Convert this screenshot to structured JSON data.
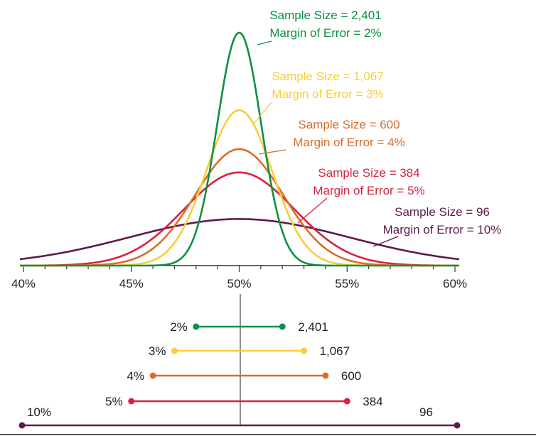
{
  "chart_data": {
    "type": "line",
    "x_ticks": [
      "40%",
      "45%",
      "50%",
      "55%",
      "60%"
    ],
    "xlim": [
      40,
      60
    ],
    "center": 50,
    "grid": false,
    "series": [
      {
        "key": "s2401",
        "color": "#0a9142",
        "sample_size": 2401,
        "margin_pct": 2,
        "peak": 1.0,
        "label_line1": "Sample Size = 2,401",
        "label_line2": "Margin of Error = 2%",
        "ci_margin_label": "2%",
        "ci_size_label": "2,401"
      },
      {
        "key": "s1067",
        "color": "#f9cd3b",
        "sample_size": 1067,
        "margin_pct": 3,
        "peak": 0.667,
        "label_line1": "Sample Size = 1,067",
        "label_line2": "Margin of Error = 3%",
        "ci_margin_label": "3%",
        "ci_size_label": "1,067"
      },
      {
        "key": "s600",
        "color": "#d96d2b",
        "sample_size": 600,
        "margin_pct": 4,
        "peak": 0.5,
        "label_line1": "Sample Size = 600",
        "label_line2": "Margin of Error = 4%",
        "ci_margin_label": "4%",
        "ci_size_label": "600"
      },
      {
        "key": "s384",
        "color": "#d9223d",
        "sample_size": 384,
        "margin_pct": 5,
        "peak": 0.4,
        "label_line1": "Sample Size = 384",
        "label_line2": "Margin of Error = 5%",
        "ci_margin_label": "5%",
        "ci_size_label": "384"
      },
      {
        "key": "s96",
        "color": "#5d1a49",
        "sample_size": 96,
        "margin_pct": 10,
        "peak": 0.2,
        "label_line1": "Sample Size = 96",
        "label_line2": "Margin of Error = 10%",
        "ci_margin_label": "10%",
        "ci_size_label": "96"
      }
    ]
  }
}
